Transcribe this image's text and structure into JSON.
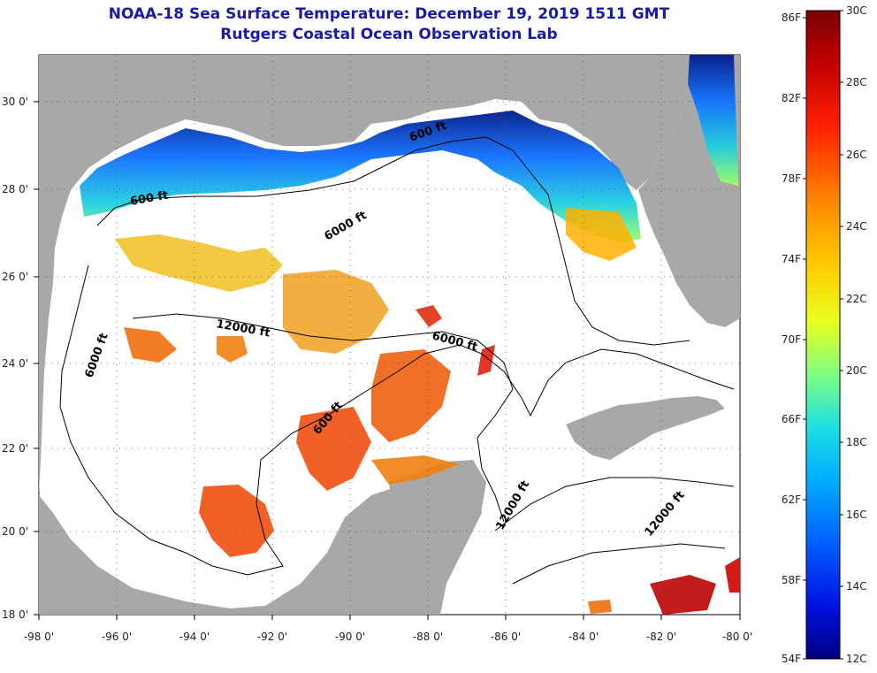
{
  "title": "NOAA-18 Sea Surface Temperature:  December 19, 2019 1511 GMT",
  "subtitle": "Rutgers Coastal Ocean Observation Lab",
  "lat_labels": [
    "30 0'",
    "28 0'",
    "26 0'",
    "24 0'",
    "22 0'",
    "20 0'",
    "18 0'"
  ],
  "lon_labels": [
    "-98 0'",
    "-96 0'",
    "-94 0'",
    "-92 0'",
    "-90 0'",
    "-88 0'",
    "-86 0'",
    "-84 0'",
    "-82 0'",
    "-80 0'"
  ],
  "contour_labels": [
    "600 ft",
    "600 ft",
    "6000 ft",
    "6000 ft",
    "6000 ft",
    "12000 ft",
    "600 ft",
    "12000 ft",
    "12000 ft"
  ],
  "colorbar": {
    "f_labels": [
      "86F",
      "82F",
      "78F",
      "74F",
      "70F",
      "66F",
      "62F",
      "58F",
      "54F"
    ],
    "c_labels": [
      "30C",
      "28C",
      "26C",
      "24C",
      "22C",
      "20C",
      "18C",
      "16C",
      "14C",
      "12C"
    ]
  },
  "colors": {
    "land": "#a8a8a8",
    "title": "#1a1aa6"
  }
}
